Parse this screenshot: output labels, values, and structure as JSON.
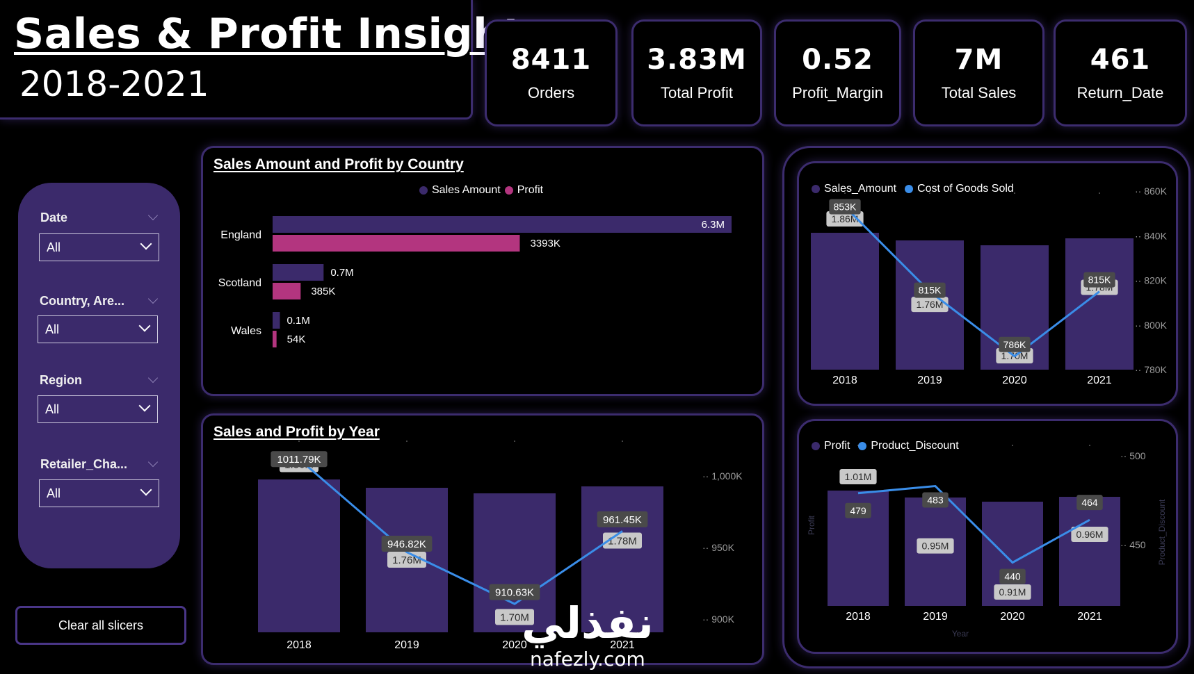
{
  "header": {
    "title": "Sales & Profit Insights",
    "years": "2018-2021"
  },
  "kpis": [
    {
      "value": "8411",
      "label": "Orders"
    },
    {
      "value": "3.83M",
      "label": "Total Profit"
    },
    {
      "value": "0.52",
      "label": "Profit_Margin"
    },
    {
      "value": "7M",
      "label": "Total Sales"
    },
    {
      "value": "461",
      "label": "Return_Date"
    }
  ],
  "slicers": [
    {
      "title": "Date",
      "value": "All"
    },
    {
      "title": "Country, Are...",
      "value": "All"
    },
    {
      "title": "Region",
      "value": "All"
    },
    {
      "title": "Retailer_Cha...",
      "value": "All"
    }
  ],
  "clear_button": "Clear all slicers",
  "colors": {
    "purple": "#3b2a6b",
    "magenta": "#b3357f",
    "blue": "#3a8de8",
    "border": "#3c2c6e"
  },
  "watermark": {
    "arabic": "نفذلي",
    "latin": "nafezly.com"
  },
  "chart_data": [
    {
      "type": "bar",
      "orientation": "horizontal",
      "title": "Sales Amount and Profit by Country",
      "categories": [
        "England",
        "Scotland",
        "Wales"
      ],
      "series": [
        {
          "name": "Sales Amount",
          "values": [
            6.3,
            0.7,
            0.1
          ],
          "labels": [
            "6.3M",
            "0.7M",
            "0.1M"
          ],
          "color": "#3b2a6b"
        },
        {
          "name": "Profit",
          "values": [
            3.393,
            0.385,
            0.054
          ],
          "labels": [
            "3393K",
            "385K",
            "54K"
          ],
          "color": "#b3357f"
        }
      ],
      "legend": "top-center"
    },
    {
      "type": "bar",
      "combo": "bar+line",
      "title": "Sales and Profit by Year",
      "categories": [
        "2018",
        "2019",
        "2020",
        "2021"
      ],
      "bars": {
        "values": [
          1.86,
          1.76,
          1.7,
          1.78
        ],
        "labels": [
          "1.86M",
          "1.76M",
          "1.70M",
          "1.78M"
        ],
        "color": "#3b2a6b"
      },
      "line": {
        "values": [
          1011.79,
          946.82,
          910.63,
          961.45
        ],
        "labels": [
          "1011.79K",
          "946.82K",
          "910.63K",
          "961.45K"
        ],
        "color": "#3a8de8"
      },
      "y2_ticks": [
        "1,000K",
        "950K",
        "900K"
      ],
      "y2_tick_values": [
        1000,
        950,
        900
      ]
    },
    {
      "type": "bar",
      "combo": "bar+line",
      "categories": [
        "2018",
        "2019",
        "2020",
        "2021"
      ],
      "series_names": [
        "Sales_Amount",
        "Cost of Goods Sold"
      ],
      "bars": {
        "name": "Sales_Amount",
        "values": [
          1.86,
          1.76,
          1.7,
          1.78
        ],
        "labels": [
          "1.86M",
          "1.76M",
          "1.70M",
          "1.78M"
        ],
        "color": "#3b2a6b"
      },
      "line": {
        "name": "Cost of Goods Sold",
        "values": [
          853,
          815,
          786,
          815
        ],
        "labels": [
          "853K",
          "815K",
          "786K",
          "815K"
        ],
        "color": "#3a8de8"
      },
      "y2_ticks": [
        "860K",
        "840K",
        "820K",
        "800K",
        "780K"
      ],
      "y2_tick_values": [
        860,
        840,
        820,
        800,
        780
      ],
      "legend": "top-left"
    },
    {
      "type": "bar",
      "combo": "bar+line",
      "categories": [
        "2018",
        "2019",
        "2020",
        "2021"
      ],
      "series_names": [
        "Profit",
        "Product_Discount"
      ],
      "bars": {
        "name": "Profit",
        "values": [
          1.01,
          0.95,
          0.91,
          0.96
        ],
        "labels": [
          "1.01M",
          "0.95M",
          "0.91M",
          "0.96M"
        ],
        "color": "#3b2a6b"
      },
      "line": {
        "name": "Product_Discount",
        "values": [
          479,
          483,
          440,
          464
        ],
        "labels": [
          "479",
          "483",
          "440",
          "464"
        ],
        "color": "#3a8de8"
      },
      "y2_ticks": [
        "500",
        "450"
      ],
      "y2_tick_values": [
        500,
        450
      ],
      "ylabel": "Profit",
      "y2label": "Product_Discount",
      "xlabel": "Year",
      "legend": "top-left"
    }
  ]
}
